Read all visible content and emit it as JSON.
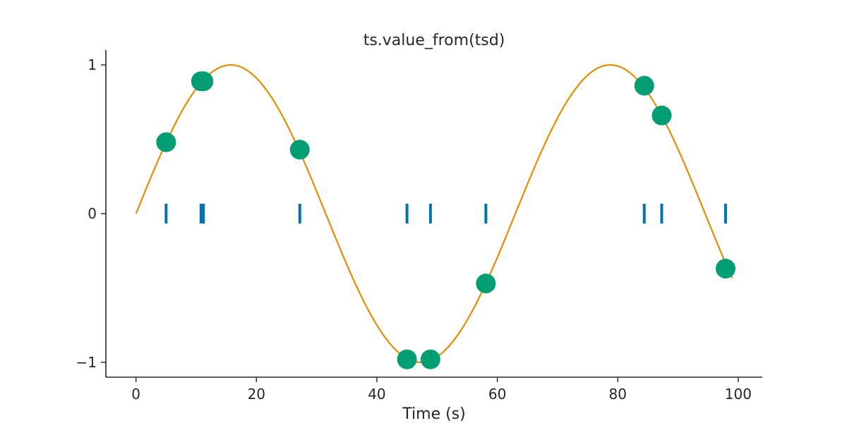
{
  "chart_data": {
    "type": "scatter",
    "title": "ts.value_from(tsd)",
    "xlabel": "Time (s)",
    "ylabel": "",
    "xlim": [
      -5,
      104
    ],
    "ylim": [
      -1.1,
      1.1
    ],
    "xticks": [
      0,
      20,
      40,
      60,
      80,
      100
    ],
    "xtick_labels": [
      "0",
      "20",
      "40",
      "60",
      "80",
      "100"
    ],
    "yticks": [
      -1,
      0,
      1
    ],
    "ytick_labels": [
      "−1",
      "0",
      "1"
    ],
    "grid": false,
    "colors": {
      "curve": "#de8f05",
      "points": "#029e73",
      "events": "#0173b2",
      "axes": "#262626"
    },
    "series": [
      {
        "kind": "line",
        "function": "sin",
        "period": 63,
        "x_range": [
          0,
          99
        ]
      },
      {
        "kind": "event",
        "x": [
          5.0,
          10.8,
          11.2,
          27.2,
          45.0,
          48.9,
          58.1,
          84.4,
          87.3,
          97.9
        ],
        "y": 0
      },
      {
        "kind": "scatter",
        "points": [
          {
            "x": 5.0,
            "y": 0.48
          },
          {
            "x": 10.8,
            "y": 0.89
          },
          {
            "x": 11.2,
            "y": 0.89
          },
          {
            "x": 27.2,
            "y": 0.43
          },
          {
            "x": 45.0,
            "y": -0.98
          },
          {
            "x": 48.9,
            "y": -0.98
          },
          {
            "x": 58.1,
            "y": -0.47
          },
          {
            "x": 84.4,
            "y": 0.86
          },
          {
            "x": 87.3,
            "y": 0.66
          },
          {
            "x": 97.9,
            "y": -0.37
          }
        ]
      }
    ]
  }
}
